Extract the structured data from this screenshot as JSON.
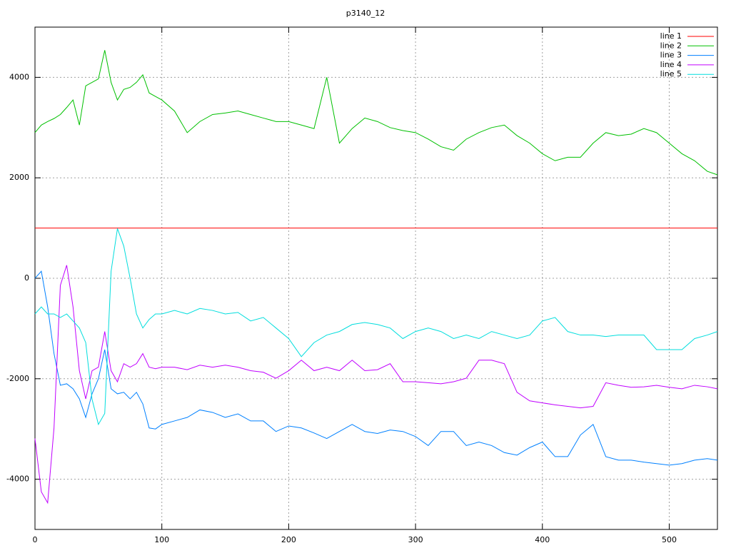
{
  "chart_data": {
    "type": "line",
    "title": "p3140_12",
    "x": [
      0,
      5,
      10,
      15,
      20,
      25,
      30,
      35,
      40,
      45,
      50,
      55,
      60,
      65,
      70,
      75,
      80,
      85,
      90,
      95,
      100,
      110,
      120,
      130,
      140,
      150,
      160,
      170,
      180,
      190,
      200,
      210,
      220,
      230,
      240,
      250,
      260,
      270,
      280,
      290,
      300,
      310,
      320,
      330,
      340,
      350,
      360,
      370,
      380,
      390,
      400,
      410,
      420,
      430,
      440,
      450,
      460,
      470,
      480,
      490,
      500,
      510,
      520,
      530,
      538
    ],
    "series": [
      {
        "name": "line 1",
        "color": "#ff0000",
        "values": [
          1000,
          1000,
          1000,
          1000,
          1000,
          1000,
          1000,
          1000,
          1000,
          1000,
          1000,
          1000,
          1000,
          1000,
          1000,
          1000,
          1000,
          1000,
          1000,
          1000,
          1000,
          1000,
          1000,
          1000,
          1000,
          1000,
          1000,
          1000,
          1000,
          1000,
          1000,
          1000,
          1000,
          1000,
          1000,
          1000,
          1000,
          1000,
          1000,
          1000,
          1000,
          1000,
          1000,
          1000,
          1000,
          1000,
          1000,
          1000,
          1000,
          1000,
          1000,
          1000,
          1000,
          1000,
          1000,
          1000,
          1000,
          1000,
          1000,
          1000,
          1000,
          1000,
          1000,
          1000,
          1000
        ]
      },
      {
        "name": "line 2",
        "color": "#00c000",
        "values": [
          2900,
          3050,
          3120,
          3180,
          3260,
          3400,
          3550,
          3050,
          3830,
          3900,
          3970,
          4540,
          3900,
          3550,
          3760,
          3800,
          3900,
          4050,
          3690,
          3620,
          3550,
          3330,
          2900,
          3120,
          3260,
          3290,
          3330,
          3260,
          3190,
          3120,
          3120,
          3050,
          2980,
          4000,
          2690,
          2980,
          3190,
          3120,
          3000,
          2940,
          2900,
          2770,
          2620,
          2550,
          2770,
          2900,
          3000,
          3050,
          2840,
          2690,
          2480,
          2340,
          2410,
          2410,
          2690,
          2900,
          2840,
          2870,
          2980,
          2900,
          2690,
          2480,
          2340,
          2130,
          2060
        ]
      },
      {
        "name": "line 3",
        "color": "#0080ff",
        "values": [
          0,
          140,
          -570,
          -1500,
          -2130,
          -2100,
          -2200,
          -2400,
          -2770,
          -2300,
          -2000,
          -1420,
          -2200,
          -2300,
          -2270,
          -2400,
          -2270,
          -2500,
          -2980,
          -3000,
          -2910,
          -2840,
          -2770,
          -2620,
          -2670,
          -2770,
          -2700,
          -2840,
          -2840,
          -3050,
          -2940,
          -2980,
          -3080,
          -3190,
          -3050,
          -2910,
          -3050,
          -3090,
          -3020,
          -3050,
          -3150,
          -3330,
          -3050,
          -3050,
          -3330,
          -3260,
          -3330,
          -3470,
          -3520,
          -3370,
          -3260,
          -3550,
          -3550,
          -3120,
          -2910,
          -3550,
          -3620,
          -3620,
          -3660,
          -3690,
          -3720,
          -3690,
          -3620,
          -3590,
          -3620
        ]
      },
      {
        "name": "line 4",
        "color": "#c000ff",
        "values": [
          -3190,
          -4250,
          -4470,
          -2980,
          -140,
          260,
          -570,
          -1840,
          -2400,
          -1840,
          -1770,
          -1060,
          -1840,
          -2060,
          -1700,
          -1770,
          -1700,
          -1500,
          -1770,
          -1800,
          -1770,
          -1770,
          -1820,
          -1730,
          -1770,
          -1730,
          -1770,
          -1840,
          -1870,
          -1990,
          -1840,
          -1630,
          -1840,
          -1770,
          -1840,
          -1630,
          -1840,
          -1820,
          -1700,
          -2060,
          -2060,
          -2080,
          -2100,
          -2060,
          -1990,
          -1630,
          -1630,
          -1700,
          -2270,
          -2440,
          -2480,
          -2520,
          -2550,
          -2580,
          -2550,
          -2080,
          -2130,
          -2170,
          -2160,
          -2130,
          -2170,
          -2200,
          -2130,
          -2160,
          -2200
        ]
      },
      {
        "name": "line 5",
        "color": "#00dddd",
        "values": [
          -710,
          -570,
          -710,
          -710,
          -780,
          -710,
          -850,
          -990,
          -1280,
          -2410,
          -2910,
          -2690,
          140,
          990,
          640,
          0,
          -710,
          -990,
          -820,
          -710,
          -710,
          -640,
          -710,
          -600,
          -640,
          -710,
          -680,
          -850,
          -780,
          -990,
          -1200,
          -1560,
          -1280,
          -1130,
          -1060,
          -920,
          -880,
          -920,
          -990,
          -1200,
          -1060,
          -990,
          -1060,
          -1200,
          -1130,
          -1200,
          -1060,
          -1130,
          -1200,
          -1130,
          -850,
          -780,
          -1060,
          -1130,
          -1130,
          -1160,
          -1130,
          -1130,
          -1130,
          -1420,
          -1420,
          -1420,
          -1200,
          -1130,
          -1060
        ]
      }
    ],
    "xlim": [
      0,
      538
    ],
    "ylim": [
      -5000,
      5000
    ],
    "xticks": [
      0,
      100,
      200,
      300,
      400,
      500
    ],
    "yticks": [
      -4000,
      -2000,
      0,
      2000,
      4000
    ],
    "grid": true,
    "legend": "top-right"
  }
}
